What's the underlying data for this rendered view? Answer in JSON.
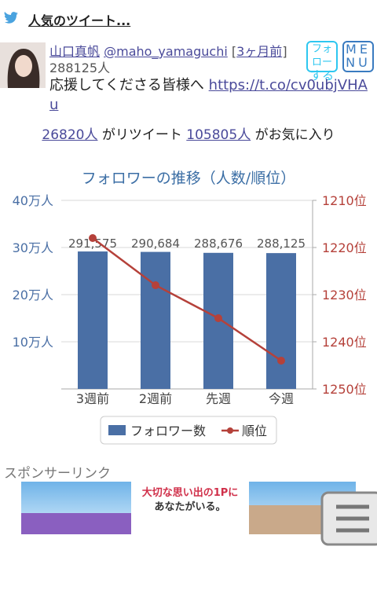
{
  "header": {
    "title": "人気のツイート..."
  },
  "tweet": {
    "user_name": "山口真帆",
    "handle": "@maho_yamaguchi",
    "time_open": "[",
    "time": "3ヶ月前",
    "time_close": "]",
    "followers": "288125人",
    "text": "応援してくださる皆様へ",
    "link": "https://t.co/cv0ubjVHAu",
    "retweets": "26820人",
    "retweet_label": "がリツイート",
    "likes": "105805人",
    "like_label": "がお気に入り"
  },
  "buttons": {
    "follow": [
      "フォロー",
      "する"
    ],
    "menu": [
      "ME",
      "NU"
    ]
  },
  "chart_data": {
    "type": "combo",
    "title": "フォロワーの推移（人数/順位）",
    "categories": [
      "3週前",
      "2週前",
      "先週",
      "今週"
    ],
    "series": [
      {
        "name": "フォロワー数",
        "type": "bar",
        "color": "#4a6fa5",
        "values": [
          291575,
          290684,
          288676,
          288125
        ],
        "value_labels": [
          "291,575",
          "290,684",
          "288,676",
          "288,125"
        ]
      },
      {
        "name": "順位",
        "type": "line",
        "axis": "y2",
        "color": "#b5413a",
        "values": [
          1218,
          1228,
          1235,
          1244
        ]
      }
    ],
    "ylim": [
      0,
      400000
    ],
    "yticks": [
      {
        "value": 100000,
        "label": "10万人"
      },
      {
        "value": 200000,
        "label": "20万人"
      },
      {
        "value": 300000,
        "label": "30万人"
      },
      {
        "value": 400000,
        "label": "40万人"
      }
    ],
    "y2lim": [
      1250,
      1210
    ],
    "y2ticks": [
      {
        "value": 1210,
        "label": "1210位"
      },
      {
        "value": 1220,
        "label": "1220位"
      },
      {
        "value": 1230,
        "label": "1230位"
      },
      {
        "value": 1240,
        "label": "1240位"
      },
      {
        "value": 1250,
        "label": "1250位"
      }
    ],
    "grid": true,
    "legend": "bottom"
  },
  "sponsor": {
    "label": "スポンサーリンク"
  },
  "ad": {
    "headline": "大切な思い出の1Pに",
    "subline": "あなたがいる。"
  }
}
